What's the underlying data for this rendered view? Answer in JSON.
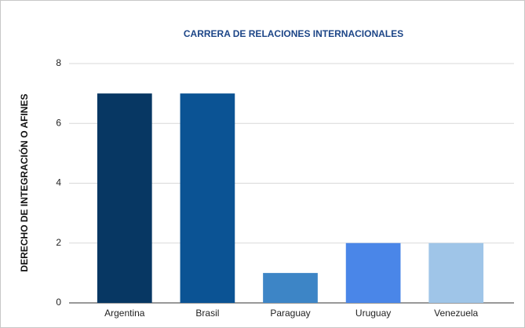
{
  "chart_data": {
    "type": "bar",
    "title": "CARRERA DE RELACIONES INTERNACIONALES",
    "y_label": "DERECHO DE INTEGRACIÓN O AFINES",
    "categories": [
      "Argentina",
      "Brasil",
      "Paraguay",
      "Uruguay",
      "Venezuela"
    ],
    "values": [
      7,
      7,
      1,
      2,
      2
    ],
    "colors": [
      "#073763",
      "#0b5394",
      "#3d85c6",
      "#4a86e8",
      "#9fc5e8"
    ],
    "ylim": [
      0,
      8
    ],
    "yticks": [
      0,
      2,
      4,
      6,
      8
    ],
    "grid": true
  }
}
